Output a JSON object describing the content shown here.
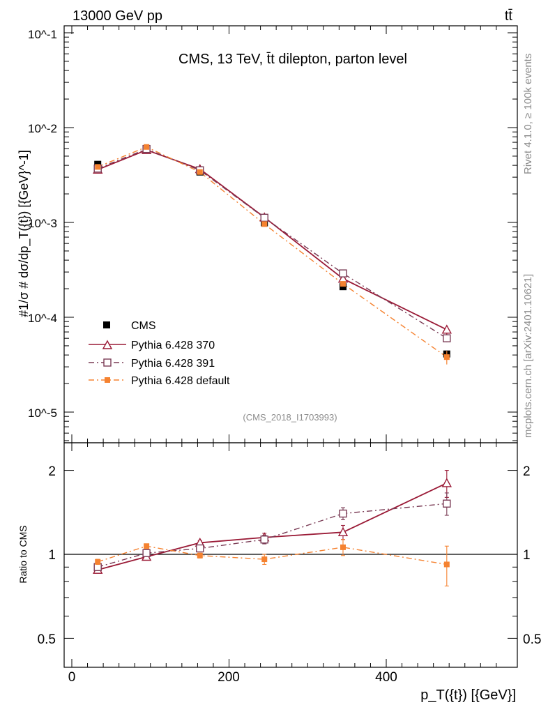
{
  "header": {
    "energy_label": "13000 GeV pp",
    "process_label": "tt̄"
  },
  "side": {
    "rivet_label": "Rivet 4.1.0, ≥ 100k events",
    "mcplots_label": "mcplots.cern.ch [arXiv:2401.10621]"
  },
  "colors": {
    "cms": "#000000",
    "py370": "#9a1a36",
    "py391": "#7a3b55",
    "pydefault": "#f58230"
  },
  "chart_data": {
    "type": "line",
    "title": "CMS, 13 TeV, t̄t dilepton, parton level",
    "analysis_id": "(CMS_2018_I1703993)",
    "xlabel": "p_T({t}) [{GeV}]",
    "ylabel": "#1/σ # dσ/dp_T({t}) [{GeV}^-1]",
    "ratio_ylabel": "Ratio to CMS",
    "xlim": [
      -5,
      560
    ],
    "ylim": [
      5e-06,
      0.13
    ],
    "yscale": "log",
    "ratio_ylim": [
      0.4,
      2.4
    ],
    "x_ticks": [
      "0",
      "200",
      "400"
    ],
    "y_ticks": [
      "10^-1",
      "10^-2",
      "10^-3",
      "10^-4",
      "10^-5"
    ],
    "ratio_ticks": [
      "0.5",
      "1",
      "2"
    ],
    "x": [
      33,
      95,
      163,
      245,
      345,
      477
    ],
    "cms": [
      0.0041,
      0.0059,
      0.0034,
      0.00099,
      0.00021,
      4.1e-05
    ],
    "series": [
      {
        "name": "CMS",
        "values": [
          0.0041,
          0.0059,
          0.0034,
          0.00099,
          0.00021,
          4.1e-05
        ]
      },
      {
        "name": "Pythia 6.428 370",
        "values": [
          0.0036,
          0.0058,
          0.00365,
          0.00113,
          0.000255,
          7.4e-05
        ],
        "ratio": [
          0.88,
          0.98,
          1.1,
          1.15,
          1.2,
          1.8
        ],
        "ratio_err": [
          0.02,
          0.02,
          0.02,
          0.04,
          0.07,
          0.2
        ]
      },
      {
        "name": "Pythia 6.428 391",
        "values": [
          0.0037,
          0.00595,
          0.00355,
          0.00112,
          0.00029,
          6e-05
        ],
        "ratio": [
          0.9,
          1.01,
          1.05,
          1.13,
          1.4,
          1.52
        ],
        "ratio_err": [
          0.02,
          0.02,
          0.02,
          0.04,
          0.07,
          0.14
        ]
      },
      {
        "name": "Pythia 6.428 default",
        "values": [
          0.00385,
          0.00625,
          0.0034,
          0.00096,
          0.000225,
          3.8e-05
        ],
        "ratio": [
          0.94,
          1.07,
          0.99,
          0.96,
          1.06,
          0.92
        ],
        "ratio_err": [
          0.02,
          0.02,
          0.02,
          0.04,
          0.07,
          0.15
        ]
      }
    ],
    "legend": [
      "CMS",
      "Pythia 6.428 370",
      "Pythia 6.428 391",
      "Pythia 6.428 default"
    ]
  }
}
